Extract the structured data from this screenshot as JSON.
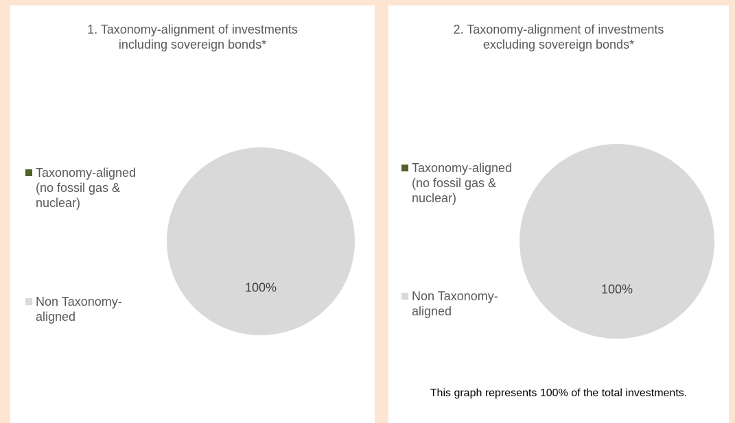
{
  "chart_data": [
    {
      "type": "pie",
      "title": "1. Taxonomy-alignment of investments including sovereign bonds*",
      "categories": [
        "Taxonomy-aligned (no fossil gas & nuclear)",
        "Non Taxonomy-aligned"
      ],
      "values": [
        0,
        100
      ],
      "value_labels": [
        null,
        "100%"
      ],
      "colors": [
        "#4f6228",
        "#d9d9d9"
      ]
    },
    {
      "type": "pie",
      "title": "2. Taxonomy-alignment of investments excluding sovereign bonds*",
      "categories": [
        "Taxonomy-aligned (no fossil gas & nuclear)",
        "Non Taxonomy-aligned"
      ],
      "values": [
        0,
        100
      ],
      "value_labels": [
        null,
        "100%"
      ],
      "colors": [
        "#4f6228",
        "#d9d9d9"
      ]
    }
  ],
  "footnote": "This graph represents 100% of the total investments."
}
